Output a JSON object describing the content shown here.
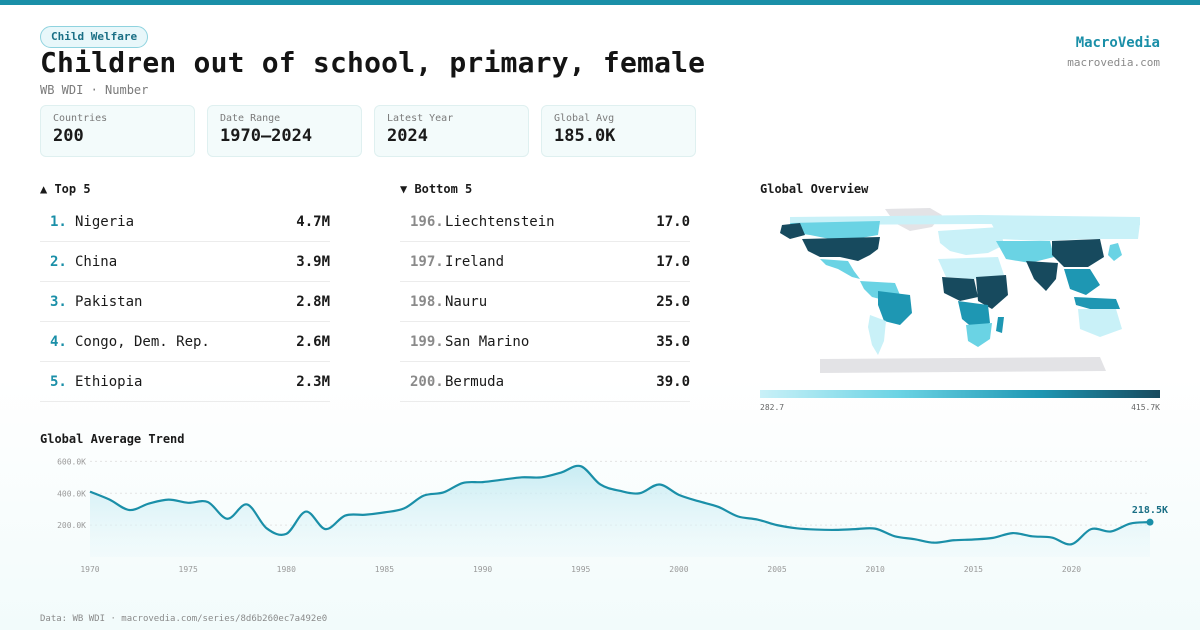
{
  "header": {
    "tag": "Child Welfare",
    "title": "Children out of school, primary, female",
    "subtitle": "WB WDI · Number",
    "brand": "MacroVedia",
    "brand_url": "macrovedia.com"
  },
  "stats": [
    {
      "label": "Countries",
      "value": "200"
    },
    {
      "label": "Date Range",
      "value": "1970–2024"
    },
    {
      "label": "Latest Year",
      "value": "2024"
    },
    {
      "label": "Global Avg",
      "value": "185.0K"
    }
  ],
  "top5": {
    "heading": "▲ Top 5",
    "rows": [
      {
        "rank": "1.",
        "name": "Nigeria",
        "value": "4.7M"
      },
      {
        "rank": "2.",
        "name": "China",
        "value": "3.9M"
      },
      {
        "rank": "3.",
        "name": "Pakistan",
        "value": "2.8M"
      },
      {
        "rank": "4.",
        "name": "Congo, Dem. Rep.",
        "value": "2.6M"
      },
      {
        "rank": "5.",
        "name": "Ethiopia",
        "value": "2.3M"
      }
    ]
  },
  "bottom5": {
    "heading": "▼ Bottom 5",
    "rows": [
      {
        "rank": "196.",
        "name": "Liechtenstein",
        "value": "17.0"
      },
      {
        "rank": "197.",
        "name": "Ireland",
        "value": "17.0"
      },
      {
        "rank": "198.",
        "name": "Nauru",
        "value": "25.0"
      },
      {
        "rank": "199.",
        "name": "San Marino",
        "value": "35.0"
      },
      {
        "rank": "200.",
        "name": "Bermuda",
        "value": "39.0"
      }
    ]
  },
  "map": {
    "heading": "Global Overview",
    "legend_min": "282.7",
    "legend_max": "415.7K"
  },
  "colors": {
    "accent": "#1a8fa8",
    "line": "#1a8fa8",
    "area_top": "#bfe9f1",
    "map_dark": "#174a5e",
    "map_mid": "#1e97b3",
    "map_light": "#6ad3e4",
    "map_pale": "#c9f1f8",
    "map_nodata": "#e3e3e6"
  },
  "chart_data": {
    "type": "area",
    "title": "Global Average Trend",
    "xlabel": "",
    "ylabel": "",
    "x_ticks": [
      "1970",
      "1975",
      "1980",
      "1985",
      "1990",
      "1995",
      "2000",
      "2005",
      "2010",
      "2015",
      "2020"
    ],
    "y_ticks": [
      "200.0K",
      "400.0K",
      "600.0K"
    ],
    "ylim": [
      0,
      640000
    ],
    "xlim": [
      1970,
      2024
    ],
    "grid": true,
    "end_label": "218.5K",
    "series": [
      {
        "x": [
          1970,
          1971,
          1972,
          1973,
          1974,
          1975,
          1976,
          1977,
          1978,
          1979,
          1980,
          1981,
          1982,
          1983,
          1984,
          1985,
          1986,
          1987,
          1988,
          1989,
          1990,
          1991,
          1992,
          1993,
          1994,
          1995,
          1996,
          1997,
          1998,
          1999,
          2000,
          2001,
          2002,
          2003,
          2004,
          2005,
          2006,
          2007,
          2008,
          2009,
          2010,
          2011,
          2012,
          2013,
          2014,
          2015,
          2016,
          2017,
          2018,
          2019,
          2020,
          2021,
          2022,
          2023,
          2024
        ],
        "values": [
          410000,
          360000,
          295000,
          335000,
          360000,
          340000,
          345000,
          240000,
          330000,
          180000,
          145000,
          285000,
          175000,
          260000,
          265000,
          280000,
          305000,
          385000,
          405000,
          465000,
          470000,
          485000,
          500000,
          500000,
          530000,
          570000,
          455000,
          415000,
          400000,
          455000,
          390000,
          350000,
          315000,
          255000,
          235000,
          200000,
          180000,
          172000,
          170000,
          175000,
          178000,
          130000,
          112000,
          90000,
          105000,
          110000,
          120000,
          150000,
          130000,
          122000,
          80000,
          175000,
          160000,
          210000,
          218500
        ]
      }
    ]
  }
}
